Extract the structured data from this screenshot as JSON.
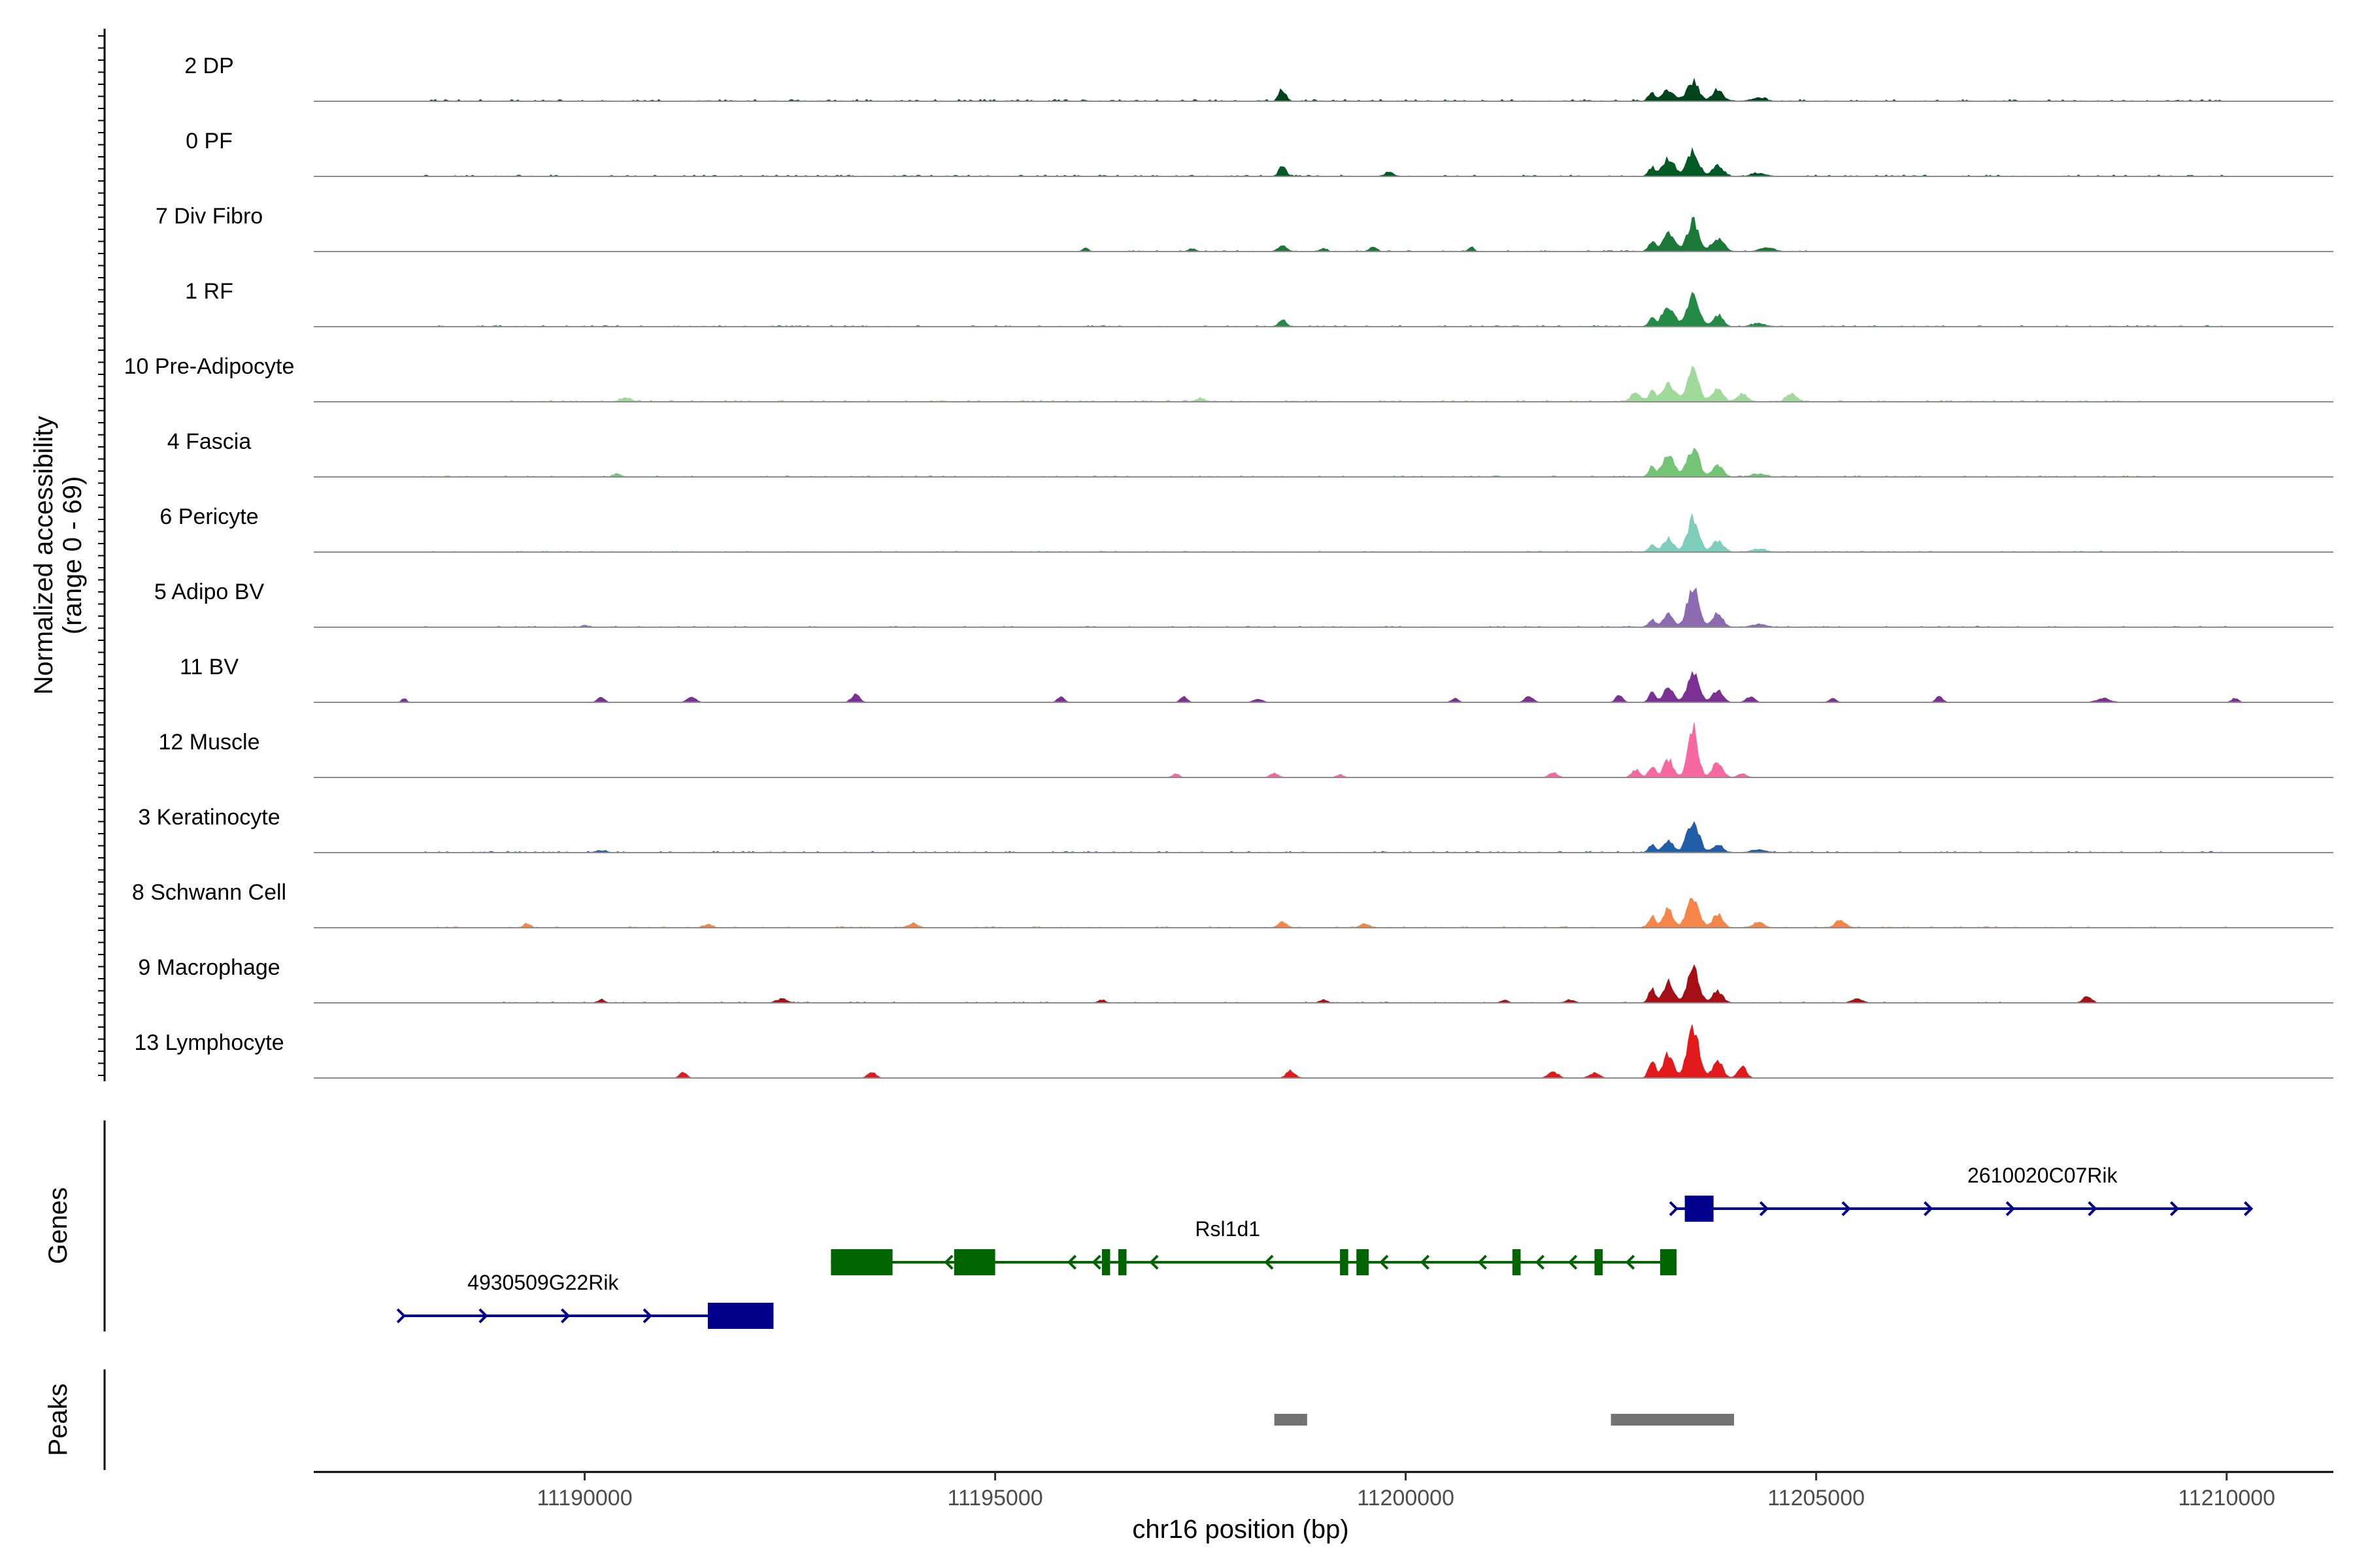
{
  "chart_data": {
    "type": "area",
    "chromosome": "chr16",
    "xlim": [
      11186700,
      11211300
    ],
    "x_ticks": [
      11190000,
      11195000,
      11200000,
      11205000,
      11210000
    ],
    "x_tick_labels": [
      "11190000",
      "11195000",
      "11200000",
      "11205000",
      "11210000"
    ],
    "xlabel": "chr16 position (bp)",
    "ylabel_line1": "Normalized accessibility",
    "ylabel_line2": "(range 0 - 69)",
    "ylim": [
      0,
      69
    ],
    "genes_panel_label": "Genes",
    "peaks_panel_label": "Peaks",
    "tracks": [
      {
        "name": "2 DP",
        "color": "#00441b",
        "bg": 0.9,
        "noise": [
          11188000,
          11210000
        ],
        "peaks": [
          [
            11198500,
            40,
            12
          ],
          [
            11203000,
            40,
            8
          ],
          [
            11203200,
            70,
            12
          ],
          [
            11203500,
            70,
            20
          ],
          [
            11203800,
            60,
            12
          ],
          [
            11204300,
            80,
            3
          ]
        ]
      },
      {
        "name": "0 PF",
        "color": "#005a24",
        "bg": 0.7,
        "noise": [
          11188000,
          11210000
        ],
        "peaks": [
          [
            11198500,
            40,
            12
          ],
          [
            11199800,
            50,
            4
          ],
          [
            11203000,
            40,
            9
          ],
          [
            11203200,
            70,
            18
          ],
          [
            11203500,
            70,
            26
          ],
          [
            11203800,
            60,
            12
          ],
          [
            11204300,
            80,
            3
          ]
        ]
      },
      {
        "name": "7 Div Fibro",
        "color": "#1b7837",
        "bg": 0.5,
        "noise": [
          11196000,
          11205000
        ],
        "peaks": [
          [
            11196100,
            30,
            4
          ],
          [
            11197400,
            40,
            3
          ],
          [
            11198500,
            50,
            6
          ],
          [
            11199000,
            40,
            3
          ],
          [
            11199600,
            40,
            5
          ],
          [
            11200800,
            30,
            5
          ],
          [
            11203000,
            40,
            10
          ],
          [
            11203200,
            70,
            18
          ],
          [
            11203500,
            70,
            30
          ],
          [
            11203800,
            70,
            14
          ],
          [
            11204400,
            80,
            4
          ]
        ]
      },
      {
        "name": "1 RF",
        "color": "#238b45",
        "bg": 0.6,
        "noise": [
          11188000,
          11210000
        ],
        "peaks": [
          [
            11198500,
            40,
            8
          ],
          [
            11203000,
            40,
            8
          ],
          [
            11203200,
            70,
            22
          ],
          [
            11203500,
            70,
            32
          ],
          [
            11203800,
            60,
            12
          ],
          [
            11204300,
            80,
            3
          ]
        ]
      },
      {
        "name": "10 Pre-Adipocyte",
        "color": "#a1d99b",
        "bg": 0.8,
        "noise": [
          11189000,
          11209000
        ],
        "peaks": [
          [
            11190500,
            60,
            4
          ],
          [
            11197500,
            60,
            3
          ],
          [
            11202800,
            60,
            8
          ],
          [
            11203000,
            40,
            10
          ],
          [
            11203200,
            70,
            18
          ],
          [
            11203500,
            70,
            32
          ],
          [
            11203800,
            60,
            14
          ],
          [
            11204100,
            60,
            8
          ],
          [
            11204700,
            60,
            8
          ]
        ]
      },
      {
        "name": "4 Fascia",
        "color": "#74c476",
        "bg": 0.6,
        "noise": [
          11188000,
          11210000
        ],
        "peaks": [
          [
            11190400,
            40,
            3
          ],
          [
            11203000,
            40,
            10
          ],
          [
            11203200,
            70,
            22
          ],
          [
            11203500,
            70,
            30
          ],
          [
            11203800,
            60,
            12
          ],
          [
            11204300,
            80,
            3
          ]
        ]
      },
      {
        "name": "6 Pericyte",
        "color": "#7fcdbb",
        "bg": 0.5,
        "noise": [
          11188000,
          11210000
        ],
        "peaks": [
          [
            11203000,
            40,
            8
          ],
          [
            11203200,
            60,
            14
          ],
          [
            11203500,
            70,
            34
          ],
          [
            11203800,
            60,
            12
          ],
          [
            11204300,
            80,
            3
          ]
        ]
      },
      {
        "name": "5 Adipo BV",
        "color": "#8c6bb1",
        "bg": 0.5,
        "noise": [
          11188000,
          11210000
        ],
        "peaks": [
          [
            11190000,
            40,
            2
          ],
          [
            11203000,
            40,
            8
          ],
          [
            11203200,
            60,
            14
          ],
          [
            11203500,
            70,
            40
          ],
          [
            11203800,
            60,
            14
          ],
          [
            11204300,
            80,
            3
          ]
        ]
      },
      {
        "name": "11 BV",
        "color": "#7a3193",
        "bg": 0,
        "noise": [
          11188000,
          11210000
        ],
        "peaks": [
          [
            11187800,
            30,
            4
          ],
          [
            11190200,
            40,
            6
          ],
          [
            11191300,
            50,
            6
          ],
          [
            11193300,
            50,
            8
          ],
          [
            11195800,
            40,
            6
          ],
          [
            11197300,
            40,
            6
          ],
          [
            11198200,
            50,
            4
          ],
          [
            11200600,
            40,
            4
          ],
          [
            11201500,
            50,
            6
          ],
          [
            11202600,
            40,
            8
          ],
          [
            11203000,
            40,
            10
          ],
          [
            11203200,
            60,
            16
          ],
          [
            11203500,
            70,
            30
          ],
          [
            11203800,
            60,
            12
          ],
          [
            11204200,
            50,
            6
          ],
          [
            11205200,
            40,
            4
          ],
          [
            11206500,
            40,
            6
          ],
          [
            11208500,
            80,
            4
          ],
          [
            11210100,
            40,
            4
          ]
        ]
      },
      {
        "name": "12 Muscle",
        "color": "#f768a1",
        "bg": 0,
        "noise": [
          11197000,
          11204500
        ],
        "peaks": [
          [
            11197200,
            40,
            4
          ],
          [
            11198400,
            50,
            4
          ],
          [
            11199200,
            40,
            3
          ],
          [
            11201800,
            50,
            5
          ],
          [
            11202800,
            50,
            8
          ],
          [
            11203000,
            40,
            12
          ],
          [
            11203200,
            60,
            18
          ],
          [
            11203500,
            60,
            50
          ],
          [
            11203800,
            60,
            16
          ],
          [
            11204100,
            50,
            4
          ]
        ]
      },
      {
        "name": "3 Keratinocyte",
        "color": "#225ea8",
        "bg": 0.6,
        "noise": [
          11188000,
          11210000
        ],
        "peaks": [
          [
            11190200,
            50,
            2
          ],
          [
            11203000,
            40,
            8
          ],
          [
            11203200,
            60,
            12
          ],
          [
            11203500,
            70,
            34
          ],
          [
            11203800,
            60,
            8
          ],
          [
            11204300,
            80,
            3
          ]
        ]
      },
      {
        "name": "8 Schwann Cell",
        "color": "#f58549",
        "bg": 0.5,
        "noise": [
          11188000,
          11210000
        ],
        "peaks": [
          [
            11189300,
            40,
            4
          ],
          [
            11191500,
            50,
            3
          ],
          [
            11194000,
            60,
            4
          ],
          [
            11198500,
            50,
            6
          ],
          [
            11199500,
            50,
            4
          ],
          [
            11203000,
            40,
            12
          ],
          [
            11203200,
            60,
            18
          ],
          [
            11203500,
            70,
            34
          ],
          [
            11203800,
            60,
            14
          ],
          [
            11204300,
            60,
            6
          ],
          [
            11205300,
            60,
            8
          ]
        ]
      },
      {
        "name": "9 Macrophage",
        "color": "#a50f15",
        "bg": 0.4,
        "noise": [
          11189000,
          11209000
        ],
        "peaks": [
          [
            11190200,
            40,
            3
          ],
          [
            11192400,
            60,
            4
          ],
          [
            11196300,
            40,
            3
          ],
          [
            11199000,
            40,
            3
          ],
          [
            11201200,
            40,
            3
          ],
          [
            11202000,
            50,
            3
          ],
          [
            11203000,
            40,
            14
          ],
          [
            11203200,
            60,
            22
          ],
          [
            11203500,
            70,
            34
          ],
          [
            11203800,
            60,
            12
          ],
          [
            11205500,
            60,
            4
          ],
          [
            11208300,
            50,
            6
          ]
        ]
      },
      {
        "name": "13 Lymphocyte",
        "color": "#e31a1c",
        "bg": 0,
        "noise": [
          11191000,
          11204200
        ],
        "peaks": [
          [
            11191200,
            40,
            6
          ],
          [
            11193500,
            50,
            6
          ],
          [
            11198600,
            50,
            8
          ],
          [
            11201800,
            60,
            6
          ],
          [
            11202300,
            60,
            5
          ],
          [
            11203000,
            40,
            18
          ],
          [
            11203200,
            60,
            26
          ],
          [
            11203500,
            70,
            56
          ],
          [
            11203800,
            60,
            18
          ],
          [
            11204100,
            50,
            12
          ]
        ]
      }
    ],
    "genes": [
      {
        "name": "4930509G22Rik",
        "color": "#00008b",
        "strand": "+",
        "start": 11187800,
        "end": 11192300,
        "exons": [
          [
            11191500,
            11192300
          ]
        ],
        "arrows": [
          11187800,
          11188800,
          11189800,
          11190800
        ]
      },
      {
        "name": "Rsl1d1",
        "color": "#006400",
        "strand": "-",
        "start": 11193000,
        "end": 11203300,
        "exons": [
          [
            11193000,
            11193750
          ],
          [
            11194500,
            11195000
          ],
          [
            11196300,
            11196400
          ],
          [
            11196500,
            11196600
          ],
          [
            11199200,
            11199300
          ],
          [
            11199400,
            11199550
          ],
          [
            11201300,
            11201400
          ],
          [
            11202300,
            11202400
          ],
          [
            11203100,
            11203300
          ]
        ],
        "arrows": [
          11194400,
          11195900,
          11196200,
          11196900,
          11198300,
          11199700,
          11200200,
          11200900,
          11201600,
          11202000,
          11202700
        ]
      },
      {
        "name": "2610020C07Rik",
        "color": "#00008b",
        "strand": "+",
        "start": 11203300,
        "end": 11210300,
        "exons": [
          [
            11203400,
            11203750
          ]
        ],
        "arrows": [
          11203300,
          11204400,
          11205400,
          11206400,
          11207400,
          11208400,
          11209400,
          11210300
        ]
      }
    ],
    "peak_regions": [
      [
        11198400,
        11198800
      ],
      [
        11202500,
        11204000
      ]
    ]
  }
}
